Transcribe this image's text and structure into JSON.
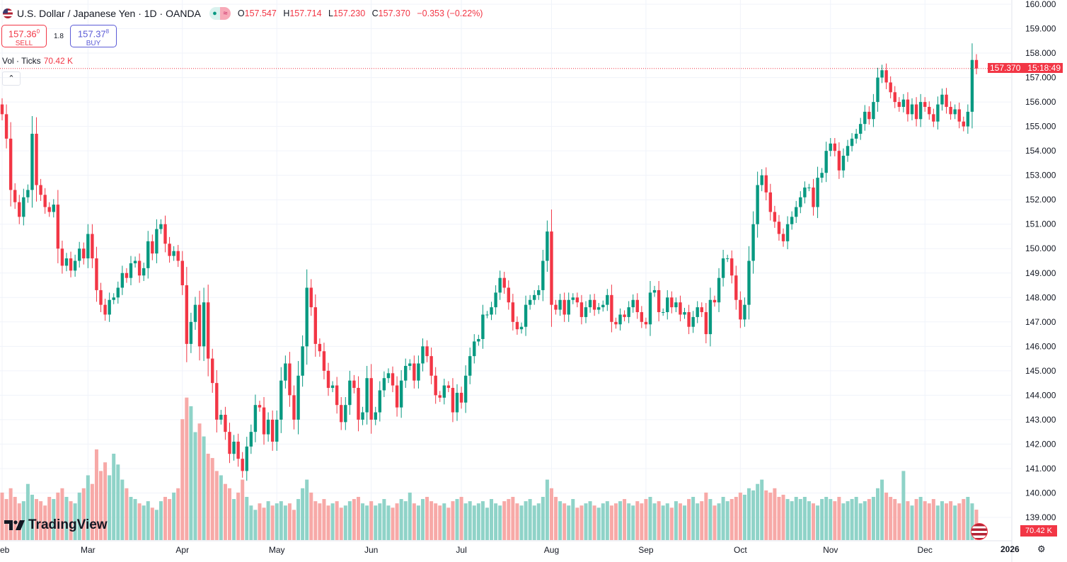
{
  "header": {
    "symbol": "U.S. Dollar / Japanese Yen · 1D · OANDA",
    "open_label": "O",
    "open": "157.547",
    "high_label": "H",
    "high": "157.714",
    "low_label": "L",
    "low": "157.230",
    "close_label": "C",
    "close": "157.370",
    "change": "−0.353 (−0.22%)",
    "icons": [
      "us-flag-icon",
      "market-open-dot-icon",
      "approx-icon"
    ]
  },
  "trade": {
    "sell_price": "157.36",
    "sell_sup": "0",
    "sell_label": "SELL",
    "spread": "1.8",
    "buy_price": "157.37",
    "buy_sup": "8",
    "buy_label": "BUY"
  },
  "volume_legend": {
    "label": "Vol · Ticks",
    "value": "70.42 K"
  },
  "price_label": {
    "price": "157.370",
    "countdown": "15:18:49"
  },
  "volume_label": "70.42 K",
  "logo": "TradingView",
  "year_label": "2026",
  "colors": {
    "up": "#089981",
    "down": "#f23645",
    "up_volume": "#8fd3c8",
    "down_volume": "#f7a9a7",
    "grid": "#f0f3fa"
  },
  "chart_data": {
    "type": "candlestick",
    "title": "U.S. Dollar / Japanese Yen · 1D · OANDA",
    "ylim": [
      139,
      160
    ],
    "y_ticks": [
      "139.000",
      "140.000",
      "141.000",
      "142.000",
      "143.000",
      "144.000",
      "145.000",
      "146.000",
      "147.000",
      "148.000",
      "149.000",
      "150.000",
      "151.000",
      "152.000",
      "153.000",
      "154.000",
      "155.000",
      "156.000",
      "157.000",
      "158.000",
      "159.000",
      "160.000"
    ],
    "x_tick_labels": [
      {
        "label": "Feb",
        "index": 0
      },
      {
        "label": "Mar",
        "index": 20
      },
      {
        "label": "Apr",
        "index": 42
      },
      {
        "label": "May",
        "index": 64
      },
      {
        "label": "Jun",
        "index": 86
      },
      {
        "label": "Jul",
        "index": 107
      },
      {
        "label": "Aug",
        "index": 128
      },
      {
        "label": "Sep",
        "index": 150
      },
      {
        "label": "Oct",
        "index": 172
      },
      {
        "label": "Nov",
        "index": 193
      },
      {
        "label": "Dec",
        "index": 215
      }
    ],
    "grid": true,
    "close": [
      155.5,
      154.5,
      152.4,
      151.9,
      151.3,
      152.1,
      152.4,
      154.7,
      152.6,
      152.2,
      151.7,
      151.5,
      151.8,
      150.0,
      149.3,
      149.6,
      149.1,
      149.5,
      150.0,
      149.6,
      150.6,
      149.6,
      148.3,
      147.7,
      147.3,
      147.9,
      148.0,
      148.4,
      149.0,
      148.8,
      149.4,
      149.5,
      148.9,
      149.2,
      150.3,
      149.8,
      150.8,
      151.0,
      150.2,
      149.7,
      149.9,
      149.5,
      148.5,
      146.1,
      147.0,
      147.7,
      146.0,
      147.8,
      145.5,
      144.5,
      143.0,
      143.2,
      142.5,
      141.6,
      142.1,
      141.4,
      140.9,
      141.9,
      142.5,
      143.6,
      143.5,
      142.4,
      143.0,
      142.1,
      143.0,
      144.6,
      145.3,
      144.0,
      143.0,
      144.8,
      146.0,
      148.4,
      147.6,
      146.1,
      145.8,
      145.0,
      144.3,
      144.4,
      143.6,
      142.9,
      143.6,
      144.6,
      144.3,
      143.0,
      143.3,
      144.7,
      143.0,
      143.3,
      144.2,
      144.7,
      144.9,
      144.4,
      143.5,
      144.6,
      145.2,
      145.3,
      144.6,
      145.3,
      146.0,
      145.6,
      144.8,
      144.0,
      143.9,
      144.4,
      144.3,
      143.3,
      144.1,
      143.7,
      144.8,
      145.6,
      146.2,
      146.3,
      147.3,
      147.3,
      147.6,
      148.2,
      148.8,
      148.4,
      147.8,
      147.0,
      146.7,
      146.8,
      147.7,
      147.9,
      148.1,
      148.3,
      149.5,
      150.7,
      147.7,
      147.5,
      147.9,
      147.3,
      147.9,
      148.0,
      147.8,
      147.2,
      147.6,
      147.9,
      147.5,
      147.6,
      147.7,
      148.1,
      147.0,
      146.9,
      147.3,
      147.2,
      147.6,
      147.9,
      147.4,
      147.0,
      146.9,
      148.2,
      148.3,
      147.4,
      147.4,
      148.0,
      147.6,
      147.8,
      147.3,
      147.4,
      146.8,
      147.2,
      147.6,
      147.4,
      146.5,
      147.9,
      147.8,
      148.8,
      149.6,
      149.6,
      148.9,
      147.9,
      147.1,
      147.7,
      149.5,
      151.0,
      152.6,
      153.0,
      152.3,
      151.5,
      151.1,
      150.6,
      150.3,
      151.0,
      151.3,
      151.7,
      152.1,
      152.5,
      152.5,
      151.7,
      152.9,
      153.1,
      154.0,
      154.3,
      154.0,
      153.2,
      153.8,
      154.2,
      154.5,
      154.7,
      155.1,
      155.6,
      155.3,
      156.0,
      157.0,
      157.3,
      156.8,
      156.4,
      156.0,
      155.8,
      156.1,
      155.5,
      155.9,
      155.3,
      156.0,
      155.8,
      155.5,
      155.2,
      155.9,
      156.3,
      155.8,
      155.5,
      155.7,
      155.2,
      155.0,
      155.6,
      157.72,
      157.37
    ],
    "volume_k": [
      110,
      95,
      120,
      100,
      85,
      90,
      130,
      105,
      95,
      90,
      80,
      100,
      95,
      110,
      120,
      100,
      90,
      85,
      110,
      120,
      150,
      130,
      210,
      160,
      180,
      150,
      200,
      175,
      140,
      120,
      100,
      95,
      85,
      80,
      90,
      75,
      70,
      90,
      100,
      95,
      110,
      120,
      280,
      330,
      310,
      250,
      270,
      240,
      200,
      190,
      160,
      150,
      130,
      120,
      95,
      110,
      140,
      100,
      80,
      70,
      85,
      75,
      90,
      80,
      85,
      90,
      80,
      85,
      70,
      95,
      120,
      140,
      110,
      90,
      85,
      95,
      80,
      85,
      90,
      75,
      80,
      90,
      95,
      100,
      85,
      80,
      90,
      80,
      85,
      95,
      80,
      75,
      85,
      95,
      90,
      110,
      85,
      80,
      95,
      100,
      90,
      85,
      80,
      85,
      75,
      90,
      95,
      100,
      85,
      90,
      80,
      85,
      90,
      75,
      95,
      85,
      80,
      90,
      95,
      100,
      85,
      80,
      90,
      95,
      80,
      85,
      100,
      140,
      120,
      100,
      90,
      85,
      80,
      95,
      75,
      80,
      85,
      90,
      80,
      75,
      85,
      90,
      80,
      85,
      90,
      95,
      85,
      80,
      90,
      85,
      95,
      100,
      85,
      90,
      80,
      85,
      75,
      90,
      85,
      80,
      95,
      100,
      85,
      90,
      110,
      95,
      80,
      85,
      100,
      90,
      95,
      100,
      110,
      105,
      120,
      115,
      130,
      140,
      115,
      110,
      120,
      100,
      105,
      95,
      90,
      100,
      95,
      100,
      90,
      85,
      80,
      95,
      100,
      95,
      90,
      100,
      85,
      90,
      95,
      100,
      85,
      90,
      95,
      100,
      120,
      140,
      110,
      100,
      95,
      85,
      160,
      90,
      80,
      95,
      100,
      90,
      85,
      95,
      80,
      90,
      85,
      90,
      80,
      85,
      95,
      100,
      85,
      70.42
    ],
    "last_price": 157.37
  }
}
